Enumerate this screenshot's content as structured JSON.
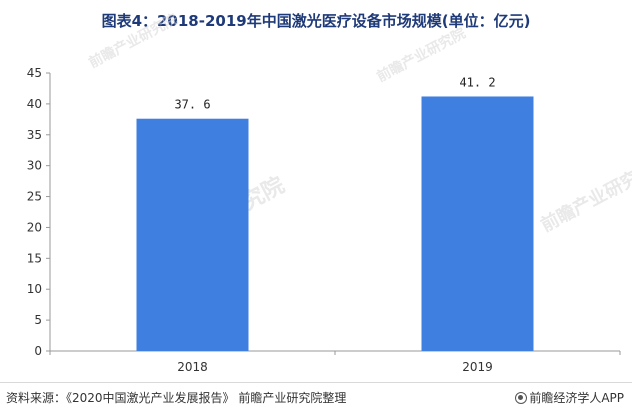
{
  "title": "图表4：2018-2019年中国激光医疗设备市场规模(单位：亿元)",
  "chart_data": {
    "type": "bar",
    "title": "图表4：2018-2019年中国激光医疗设备市场规模(单位：亿元)",
    "categories": [
      "2018",
      "2019"
    ],
    "values": [
      37.6,
      41.2
    ],
    "value_labels": [
      "37. 6",
      "41. 2"
    ],
    "ylim": [
      0,
      45
    ],
    "yticks": [
      0,
      5,
      10,
      15,
      20,
      25,
      30,
      35,
      40,
      45
    ],
    "xlabel": "",
    "ylabel": "",
    "grid": false,
    "legend": "none",
    "bar_color": "#3f7fe0"
  },
  "watermark": "前瞻产业研究院",
  "footer": {
    "source": "资料来源：《2020中国激光产业发展报告》 前瞻产业研究院整理",
    "brand": "前瞻经济学人APP"
  },
  "colors": {
    "title": "#1f3a78",
    "bar": "#3f7fe0",
    "axis": "#999999"
  }
}
